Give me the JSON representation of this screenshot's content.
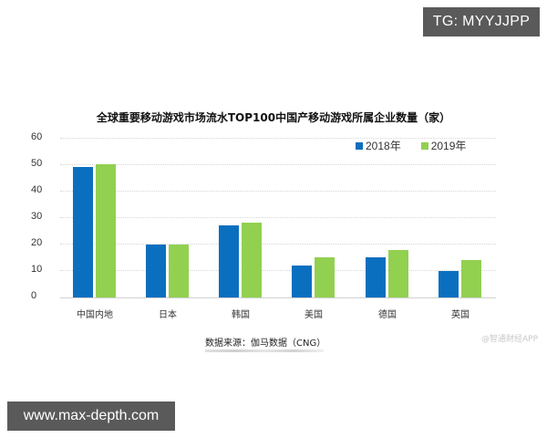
{
  "overlays": {
    "top_right_badge": "TG: MYYJJPP",
    "bottom_left_badge": "www.max-depth.com"
  },
  "chart": {
    "title": "全球重要移动游戏市场流水TOP100中国产移动游戏所属企业数量（家）",
    "source": "数据来源：伽马数据（CNG）",
    "watermark": "@智通财经APP",
    "y_ticks": [
      "60",
      "50",
      "40",
      "30",
      "20",
      "10",
      "0"
    ],
    "legend": [
      {
        "label": "2018年",
        "color": "#0b6fbf"
      },
      {
        "label": "2019年",
        "color": "#92d050"
      }
    ],
    "categories": [
      "中国内地",
      "日本",
      "韩国",
      "美国",
      "德国",
      "英国"
    ]
  },
  "chart_data": {
    "type": "bar",
    "title": "全球重要移动游戏市场流水TOP100中国产移动游戏所属企业数量（家）",
    "xlabel": "",
    "ylabel": "",
    "ylim": [
      0,
      60
    ],
    "yticks": [
      0,
      10,
      20,
      30,
      40,
      50,
      60
    ],
    "grid": true,
    "legend_position": "top-right",
    "categories": [
      "中国内地",
      "日本",
      "韩国",
      "美国",
      "德国",
      "英国"
    ],
    "series": [
      {
        "name": "2018年",
        "color": "#0b6fbf",
        "values": [
          49,
          20,
          27,
          12,
          15,
          10
        ]
      },
      {
        "name": "2019年",
        "color": "#92d050",
        "values": [
          50,
          20,
          28,
          15,
          18,
          14
        ]
      }
    ],
    "source": "数据来源：伽马数据（CNG）"
  }
}
